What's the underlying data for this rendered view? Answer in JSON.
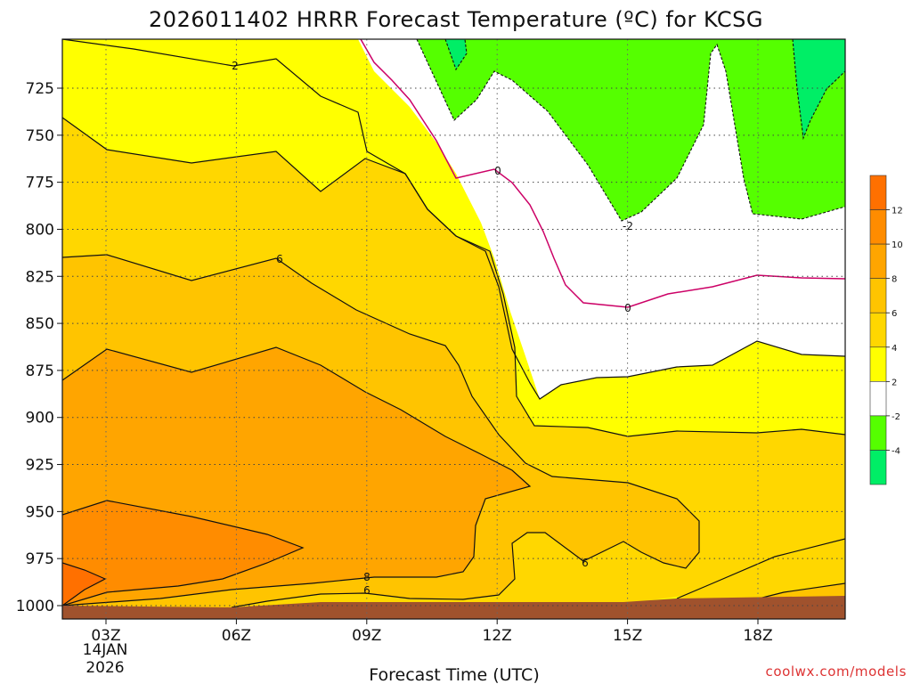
{
  "chart_data": {
    "type": "heatmap",
    "title": "2026011402 HRRR Forecast Temperature (ºC) for KCSG",
    "xlabel": "Forecast Time (UTC)",
    "x_ticks": [
      "03Z",
      "06Z",
      "09Z",
      "12Z",
      "15Z",
      "18Z"
    ],
    "x_date_lines": [
      "14JAN",
      "2026"
    ],
    "y_ticks": [
      725,
      750,
      775,
      800,
      825,
      850,
      875,
      900,
      925,
      950,
      975,
      1000
    ],
    "y_axis_inverted": true,
    "grid": "dotted",
    "colorbar": {
      "position": "right",
      "bins": [
        {
          "range": [
            -6,
            -4
          ],
          "color": "#00ee66"
        },
        {
          "range": [
            -4,
            -2
          ],
          "color": "#55ff00"
        },
        {
          "range": [
            -2,
            2
          ],
          "color": "#ffffff"
        },
        {
          "range": [
            2,
            4
          ],
          "color": "#ffff00"
        },
        {
          "range": [
            4,
            6
          ],
          "color": "#ffd700"
        },
        {
          "range": [
            6,
            8
          ],
          "color": "#ffc400"
        },
        {
          "range": [
            8,
            10
          ],
          "color": "#ffa500"
        },
        {
          "range": [
            10,
            12
          ],
          "color": "#ff8c00"
        },
        {
          "range": [
            12,
            14
          ],
          "color": "#ff7000"
        }
      ],
      "tick_labels": [
        "12",
        "10",
        "8",
        "6",
        "4",
        "2",
        "-2",
        "-4"
      ]
    },
    "contour_labels": [
      "2",
      "0",
      "0",
      "-2",
      "6",
      "8",
      "6",
      "6"
    ],
    "ground_color": "#a0522d",
    "credit": "coolwx.com/models"
  }
}
